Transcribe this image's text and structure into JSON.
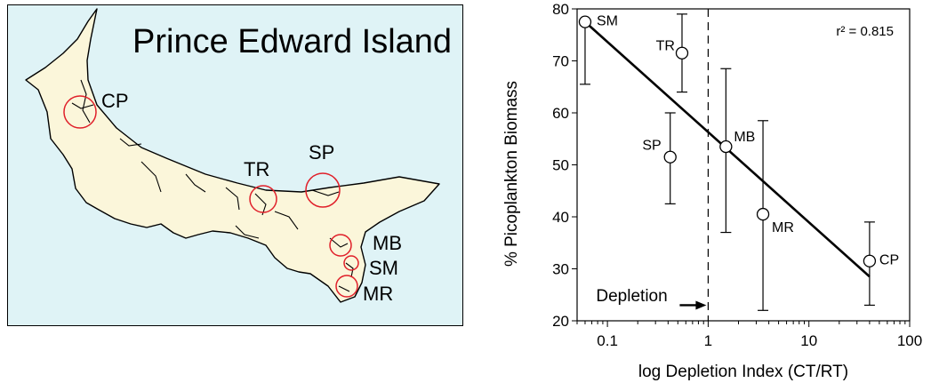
{
  "map": {
    "title": "Prince Edward Island",
    "colors": {
      "water": "#dff3f6",
      "land": "#fbf6da",
      "circle": "#e0202a"
    },
    "sites": [
      {
        "label": "CP"
      },
      {
        "label": "TR"
      },
      {
        "label": "SP"
      },
      {
        "label": "MB"
      },
      {
        "label": "SM"
      },
      {
        "label": "MR"
      }
    ]
  },
  "chart_data": {
    "type": "scatter",
    "xlabel": "log Depletion Index (CT/RT)",
    "ylabel": "% Picoplankton Biomass",
    "xscale": "log",
    "xlim": [
      0.05,
      100
    ],
    "ylim": [
      20,
      80
    ],
    "x_ticks": [
      "0.1",
      "1",
      "10",
      "100"
    ],
    "y_ticks": [
      "20",
      "30",
      "40",
      "50",
      "60",
      "70",
      "80"
    ],
    "points": [
      {
        "label": "SM",
        "x": 0.06,
        "y": 77.5,
        "err_low": 65.5,
        "err_high": 78
      },
      {
        "label": "TR",
        "x": 0.55,
        "y": 71.5,
        "err_low": 64,
        "err_high": 79
      },
      {
        "label": "SP",
        "x": 0.42,
        "y": 51.5,
        "err_low": 42.5,
        "err_high": 60
      },
      {
        "label": "MB",
        "x": 1.5,
        "y": 53.5,
        "err_low": 37,
        "err_high": 68.5
      },
      {
        "label": "MR",
        "x": 3.5,
        "y": 40.5,
        "err_low": 22,
        "err_high": 58.5
      },
      {
        "label": "CP",
        "x": 40,
        "y": 31.5,
        "err_low": 23,
        "err_high": 39
      }
    ],
    "fit_line": {
      "x": [
        0.06,
        40
      ],
      "y": [
        77.5,
        28.5
      ]
    },
    "r_squared": "r² = 0.815",
    "threshold": {
      "x": 1,
      "label": "Depletion"
    }
  }
}
